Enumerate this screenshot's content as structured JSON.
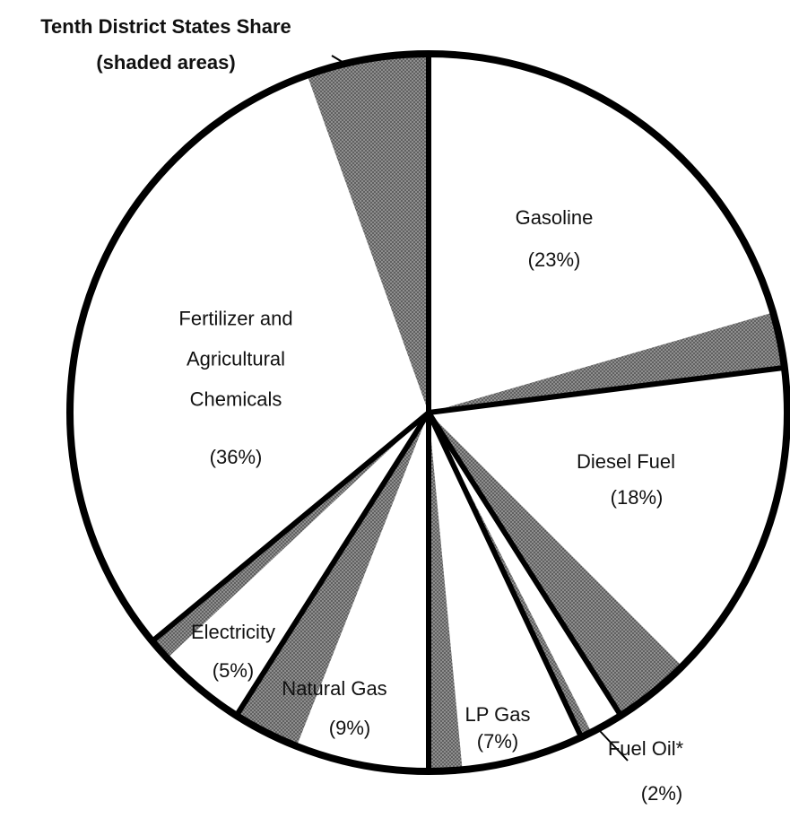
{
  "chart_data": {
    "type": "pie",
    "annotation": [
      "Tenth District States Share",
      "(shaded areas)"
    ],
    "categories": [
      "Gasoline",
      "Diesel Fuel",
      "Fuel Oil*",
      "LP Gas",
      "Natural Gas",
      "Electricity",
      "Fertilizer and Agricultural Chemicals"
    ],
    "values": [
      23,
      18,
      2,
      7,
      9,
      5,
      36
    ],
    "value_labels": [
      "(23%)",
      "(18%)",
      "(2%)",
      "(7%)",
      "(9%)",
      "(5%)",
      "(36%)"
    ],
    "district_share": [
      2.5,
      3.5,
      0.5,
      1.5,
      3,
      1,
      5.5
    ],
    "color": "#ffffff",
    "shade_color": "#8a8a8a",
    "border_color": "#000000"
  }
}
